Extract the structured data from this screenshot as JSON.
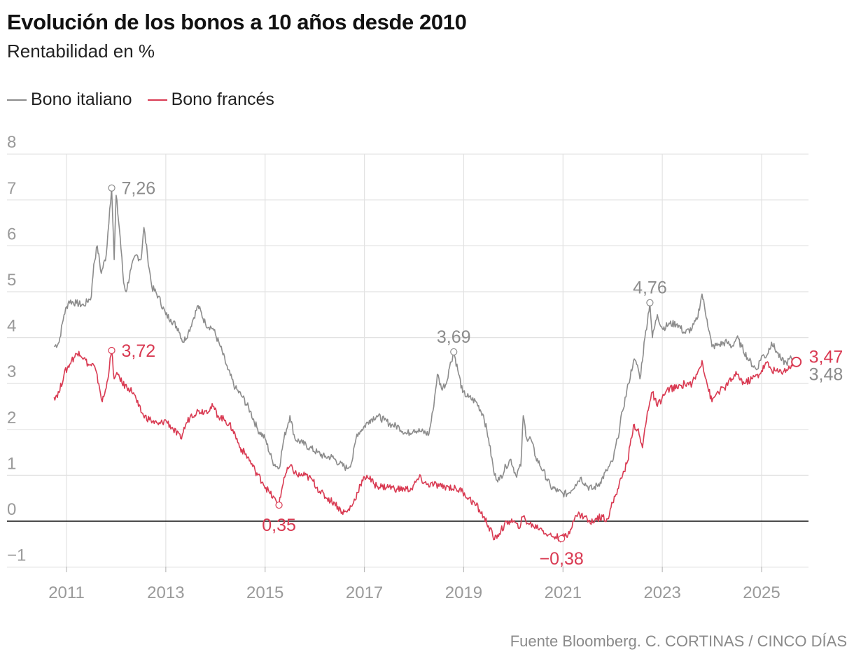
{
  "title": "Evolución de los bonos a 10 años desde 2010",
  "subtitle": "Rentabilidad en %",
  "source": "Fuente Bloomberg. C. CORTINAS / CINCO DÍAS",
  "colors": {
    "italy": "#8c8c8c",
    "france": "#d93a52",
    "grid": "#e2e2e2",
    "zero": "#111111",
    "tick": "#9a9a9a"
  },
  "legend": [
    {
      "name": "Bono italiano",
      "color": "#8c8c8c"
    },
    {
      "name": "Bono francés",
      "color": "#d93a52"
    }
  ],
  "chart_data": {
    "type": "line",
    "title": "Evolución de los bonos a 10 años desde 2010",
    "subtitle": "Rentabilidad en %",
    "ylim": [
      -1,
      8
    ],
    "xlim": [
      2010.6,
      2025.85
    ],
    "grid": true,
    "y_ticks": [
      -1,
      0,
      1,
      2,
      3,
      4,
      5,
      6,
      7,
      8
    ],
    "y_tick_labels": [
      "−1",
      "0",
      "1",
      "2",
      "3",
      "4",
      "5",
      "6",
      "7",
      "8"
    ],
    "x_ticks": [
      2011,
      2013,
      2015,
      2017,
      2019,
      2021,
      2023,
      2025
    ],
    "x_tick_labels": [
      "2011",
      "2013",
      "2015",
      "2017",
      "2019",
      "2021",
      "2023",
      "2025"
    ],
    "series": [
      {
        "name": "Bono italiano",
        "color": "#8c8c8c",
        "points": [
          [
            2010.75,
            3.8
          ],
          [
            2010.85,
            3.9
          ],
          [
            2010.95,
            4.5
          ],
          [
            2011.05,
            4.8
          ],
          [
            2011.2,
            4.75
          ],
          [
            2011.35,
            4.7
          ],
          [
            2011.5,
            4.9
          ],
          [
            2011.55,
            5.6
          ],
          [
            2011.62,
            6.0
          ],
          [
            2011.7,
            5.4
          ],
          [
            2011.8,
            5.8
          ],
          [
            2011.87,
            6.8
          ],
          [
            2011.91,
            7.26
          ],
          [
            2011.96,
            5.7
          ],
          [
            2012.0,
            7.1
          ],
          [
            2012.08,
            6.2
          ],
          [
            2012.15,
            5.2
          ],
          [
            2012.2,
            5.0
          ],
          [
            2012.3,
            5.5
          ],
          [
            2012.4,
            5.8
          ],
          [
            2012.5,
            5.7
          ],
          [
            2012.56,
            6.4
          ],
          [
            2012.63,
            5.8
          ],
          [
            2012.72,
            5.1
          ],
          [
            2012.85,
            4.9
          ],
          [
            2013.0,
            4.5
          ],
          [
            2013.1,
            4.4
          ],
          [
            2013.25,
            4.2
          ],
          [
            2013.35,
            3.9
          ],
          [
            2013.45,
            4.1
          ],
          [
            2013.55,
            4.4
          ],
          [
            2013.65,
            4.7
          ],
          [
            2013.8,
            4.3
          ],
          [
            2013.95,
            4.2
          ],
          [
            2014.1,
            3.8
          ],
          [
            2014.25,
            3.3
          ],
          [
            2014.4,
            2.9
          ],
          [
            2014.55,
            2.7
          ],
          [
            2014.7,
            2.4
          ],
          [
            2014.85,
            2.0
          ],
          [
            2015.0,
            1.8
          ],
          [
            2015.15,
            1.3
          ],
          [
            2015.28,
            1.15
          ],
          [
            2015.38,
            1.8
          ],
          [
            2015.5,
            2.3
          ],
          [
            2015.6,
            1.8
          ],
          [
            2015.75,
            1.7
          ],
          [
            2015.9,
            1.6
          ],
          [
            2016.05,
            1.5
          ],
          [
            2016.2,
            1.4
          ],
          [
            2016.35,
            1.4
          ],
          [
            2016.5,
            1.25
          ],
          [
            2016.65,
            1.15
          ],
          [
            2016.75,
            1.3
          ],
          [
            2016.85,
            1.9
          ],
          [
            2016.95,
            2.0
          ],
          [
            2017.1,
            2.2
          ],
          [
            2017.25,
            2.3
          ],
          [
            2017.4,
            2.2
          ],
          [
            2017.55,
            2.1
          ],
          [
            2017.7,
            2.05
          ],
          [
            2017.85,
            1.9
          ],
          [
            2018.0,
            2.0
          ],
          [
            2018.15,
            1.95
          ],
          [
            2018.3,
            1.9
          ],
          [
            2018.38,
            2.4
          ],
          [
            2018.47,
            3.2
          ],
          [
            2018.55,
            2.9
          ],
          [
            2018.65,
            3.0
          ],
          [
            2018.7,
            3.3
          ],
          [
            2018.8,
            3.69
          ],
          [
            2018.88,
            3.3
          ],
          [
            2018.98,
            2.8
          ],
          [
            2019.1,
            2.7
          ],
          [
            2019.25,
            2.6
          ],
          [
            2019.4,
            2.3
          ],
          [
            2019.5,
            1.8
          ],
          [
            2019.62,
            1.0
          ],
          [
            2019.72,
            0.9
          ],
          [
            2019.85,
            1.2
          ],
          [
            2019.95,
            1.35
          ],
          [
            2020.05,
            1.0
          ],
          [
            2020.15,
            1.2
          ],
          [
            2020.2,
            2.3
          ],
          [
            2020.27,
            1.8
          ],
          [
            2020.35,
            1.8
          ],
          [
            2020.45,
            1.4
          ],
          [
            2020.6,
            1.1
          ],
          [
            2020.75,
            0.75
          ],
          [
            2020.9,
            0.65
          ],
          [
            2021.0,
            0.6
          ],
          [
            2021.1,
            0.6
          ],
          [
            2021.25,
            0.8
          ],
          [
            2021.35,
            0.95
          ],
          [
            2021.5,
            0.75
          ],
          [
            2021.6,
            0.7
          ],
          [
            2021.75,
            0.85
          ],
          [
            2021.88,
            1.1
          ],
          [
            2022.0,
            1.3
          ],
          [
            2022.1,
            1.8
          ],
          [
            2022.2,
            2.4
          ],
          [
            2022.32,
            3.0
          ],
          [
            2022.42,
            3.5
          ],
          [
            2022.5,
            3.4
          ],
          [
            2022.55,
            3.1
          ],
          [
            2022.65,
            4.0
          ],
          [
            2022.75,
            4.76
          ],
          [
            2022.8,
            4.0
          ],
          [
            2022.9,
            4.5
          ],
          [
            2023.0,
            4.2
          ],
          [
            2023.15,
            4.3
          ],
          [
            2023.3,
            4.3
          ],
          [
            2023.45,
            4.1
          ],
          [
            2023.6,
            4.2
          ],
          [
            2023.7,
            4.4
          ],
          [
            2023.8,
            4.95
          ],
          [
            2023.9,
            4.4
          ],
          [
            2024.0,
            3.8
          ],
          [
            2024.15,
            3.85
          ],
          [
            2024.3,
            3.9
          ],
          [
            2024.4,
            3.8
          ],
          [
            2024.5,
            4.0
          ],
          [
            2024.6,
            3.8
          ],
          [
            2024.75,
            3.5
          ],
          [
            2024.9,
            3.3
          ],
          [
            2025.0,
            3.6
          ],
          [
            2025.1,
            3.6
          ],
          [
            2025.2,
            3.9
          ],
          [
            2025.3,
            3.7
          ],
          [
            2025.4,
            3.5
          ],
          [
            2025.5,
            3.45
          ],
          [
            2025.6,
            3.55
          ],
          [
            2025.7,
            3.48
          ]
        ]
      },
      {
        "name": "Bono francés",
        "color": "#d93a52",
        "points": [
          [
            2010.75,
            2.7
          ],
          [
            2010.85,
            2.8
          ],
          [
            2010.95,
            3.2
          ],
          [
            2011.1,
            3.5
          ],
          [
            2011.25,
            3.7
          ],
          [
            2011.35,
            3.55
          ],
          [
            2011.45,
            3.4
          ],
          [
            2011.55,
            3.4
          ],
          [
            2011.65,
            3.0
          ],
          [
            2011.72,
            2.6
          ],
          [
            2011.8,
            2.9
          ],
          [
            2011.91,
            3.72
          ],
          [
            2011.96,
            3.1
          ],
          [
            2012.05,
            3.2
          ],
          [
            2012.12,
            3.0
          ],
          [
            2012.25,
            2.9
          ],
          [
            2012.35,
            2.8
          ],
          [
            2012.45,
            2.5
          ],
          [
            2012.55,
            2.3
          ],
          [
            2012.7,
            2.2
          ],
          [
            2012.85,
            2.1
          ],
          [
            2013.0,
            2.2
          ],
          [
            2013.15,
            2.0
          ],
          [
            2013.3,
            1.8
          ],
          [
            2013.4,
            2.1
          ],
          [
            2013.5,
            2.3
          ],
          [
            2013.65,
            2.4
          ],
          [
            2013.8,
            2.4
          ],
          [
            2013.95,
            2.5
          ],
          [
            2014.05,
            2.3
          ],
          [
            2014.2,
            2.2
          ],
          [
            2014.35,
            2.0
          ],
          [
            2014.5,
            1.6
          ],
          [
            2014.65,
            1.4
          ],
          [
            2014.8,
            1.1
          ],
          [
            2014.95,
            0.85
          ],
          [
            2015.1,
            0.6
          ],
          [
            2015.28,
            0.35
          ],
          [
            2015.38,
            0.95
          ],
          [
            2015.5,
            1.2
          ],
          [
            2015.65,
            1.0
          ],
          [
            2015.8,
            1.0
          ],
          [
            2015.95,
            0.9
          ],
          [
            2016.1,
            0.65
          ],
          [
            2016.25,
            0.5
          ],
          [
            2016.4,
            0.4
          ],
          [
            2016.55,
            0.2
          ],
          [
            2016.65,
            0.2
          ],
          [
            2016.78,
            0.4
          ],
          [
            2016.92,
            0.8
          ],
          [
            2017.05,
            1.0
          ],
          [
            2017.2,
            0.8
          ],
          [
            2017.35,
            0.75
          ],
          [
            2017.5,
            0.75
          ],
          [
            2017.65,
            0.7
          ],
          [
            2017.8,
            0.7
          ],
          [
            2017.95,
            0.7
          ],
          [
            2018.1,
            0.95
          ],
          [
            2018.25,
            0.8
          ],
          [
            2018.4,
            0.8
          ],
          [
            2018.55,
            0.75
          ],
          [
            2018.7,
            0.75
          ],
          [
            2018.85,
            0.7
          ],
          [
            2018.98,
            0.65
          ],
          [
            2019.1,
            0.5
          ],
          [
            2019.25,
            0.35
          ],
          [
            2019.4,
            0.1
          ],
          [
            2019.5,
            -0.1
          ],
          [
            2019.62,
            -0.4
          ],
          [
            2019.75,
            -0.2
          ],
          [
            2019.9,
            0.0
          ],
          [
            2020.0,
            0.0
          ],
          [
            2020.1,
            -0.15
          ],
          [
            2020.2,
            0.1
          ],
          [
            2020.3,
            -0.05
          ],
          [
            2020.4,
            -0.1
          ],
          [
            2020.55,
            -0.15
          ],
          [
            2020.7,
            -0.3
          ],
          [
            2020.85,
            -0.34
          ],
          [
            2020.97,
            -0.38
          ],
          [
            2021.1,
            -0.3
          ],
          [
            2021.2,
            0.0
          ],
          [
            2021.3,
            0.15
          ],
          [
            2021.45,
            0.1
          ],
          [
            2021.55,
            -0.05
          ],
          [
            2021.65,
            0.05
          ],
          [
            2021.8,
            0.1
          ],
          [
            2021.9,
            0.05
          ],
          [
            2022.0,
            0.4
          ],
          [
            2022.1,
            0.7
          ],
          [
            2022.2,
            1.0
          ],
          [
            2022.3,
            1.3
          ],
          [
            2022.42,
            2.1
          ],
          [
            2022.5,
            2.0
          ],
          [
            2022.6,
            1.6
          ],
          [
            2022.7,
            2.4
          ],
          [
            2022.8,
            2.8
          ],
          [
            2022.9,
            2.5
          ],
          [
            2023.0,
            2.7
          ],
          [
            2023.15,
            2.9
          ],
          [
            2023.3,
            2.9
          ],
          [
            2023.45,
            3.0
          ],
          [
            2023.6,
            3.0
          ],
          [
            2023.7,
            3.2
          ],
          [
            2023.8,
            3.5
          ],
          [
            2023.9,
            3.0
          ],
          [
            2024.0,
            2.6
          ],
          [
            2024.1,
            2.8
          ],
          [
            2024.25,
            2.9
          ],
          [
            2024.4,
            3.1
          ],
          [
            2024.5,
            3.2
          ],
          [
            2024.65,
            3.0
          ],
          [
            2024.8,
            3.1
          ],
          [
            2024.95,
            3.2
          ],
          [
            2025.1,
            3.45
          ],
          [
            2025.2,
            3.3
          ],
          [
            2025.35,
            3.25
          ],
          [
            2025.5,
            3.3
          ],
          [
            2025.6,
            3.4
          ],
          [
            2025.7,
            3.47
          ]
        ]
      }
    ],
    "annotations": [
      {
        "label": "7,26",
        "x": 2011.91,
        "y": 7.26,
        "series": "Bono italiano",
        "placement": "right"
      },
      {
        "label": "3,72",
        "x": 2011.91,
        "y": 3.72,
        "series": "Bono francés",
        "placement": "right"
      },
      {
        "label": "3,69",
        "x": 2018.8,
        "y": 3.69,
        "series": "Bono italiano",
        "placement": "above"
      },
      {
        "label": "4,76",
        "x": 2022.75,
        "y": 4.76,
        "series": "Bono italiano",
        "placement": "above"
      },
      {
        "label": "0,35",
        "x": 2015.28,
        "y": 0.35,
        "series": "Bono francés",
        "placement": "below"
      },
      {
        "label": "−0,38",
        "x": 2020.97,
        "y": -0.38,
        "series": "Bono francés",
        "placement": "below"
      },
      {
        "label": "3,47",
        "x": 2025.7,
        "y": 3.47,
        "series": "Bono francés",
        "placement": "end-upper"
      },
      {
        "label": "3,48",
        "x": 2025.7,
        "y": 3.48,
        "series": "Bono italiano",
        "placement": "end-lower"
      }
    ]
  }
}
